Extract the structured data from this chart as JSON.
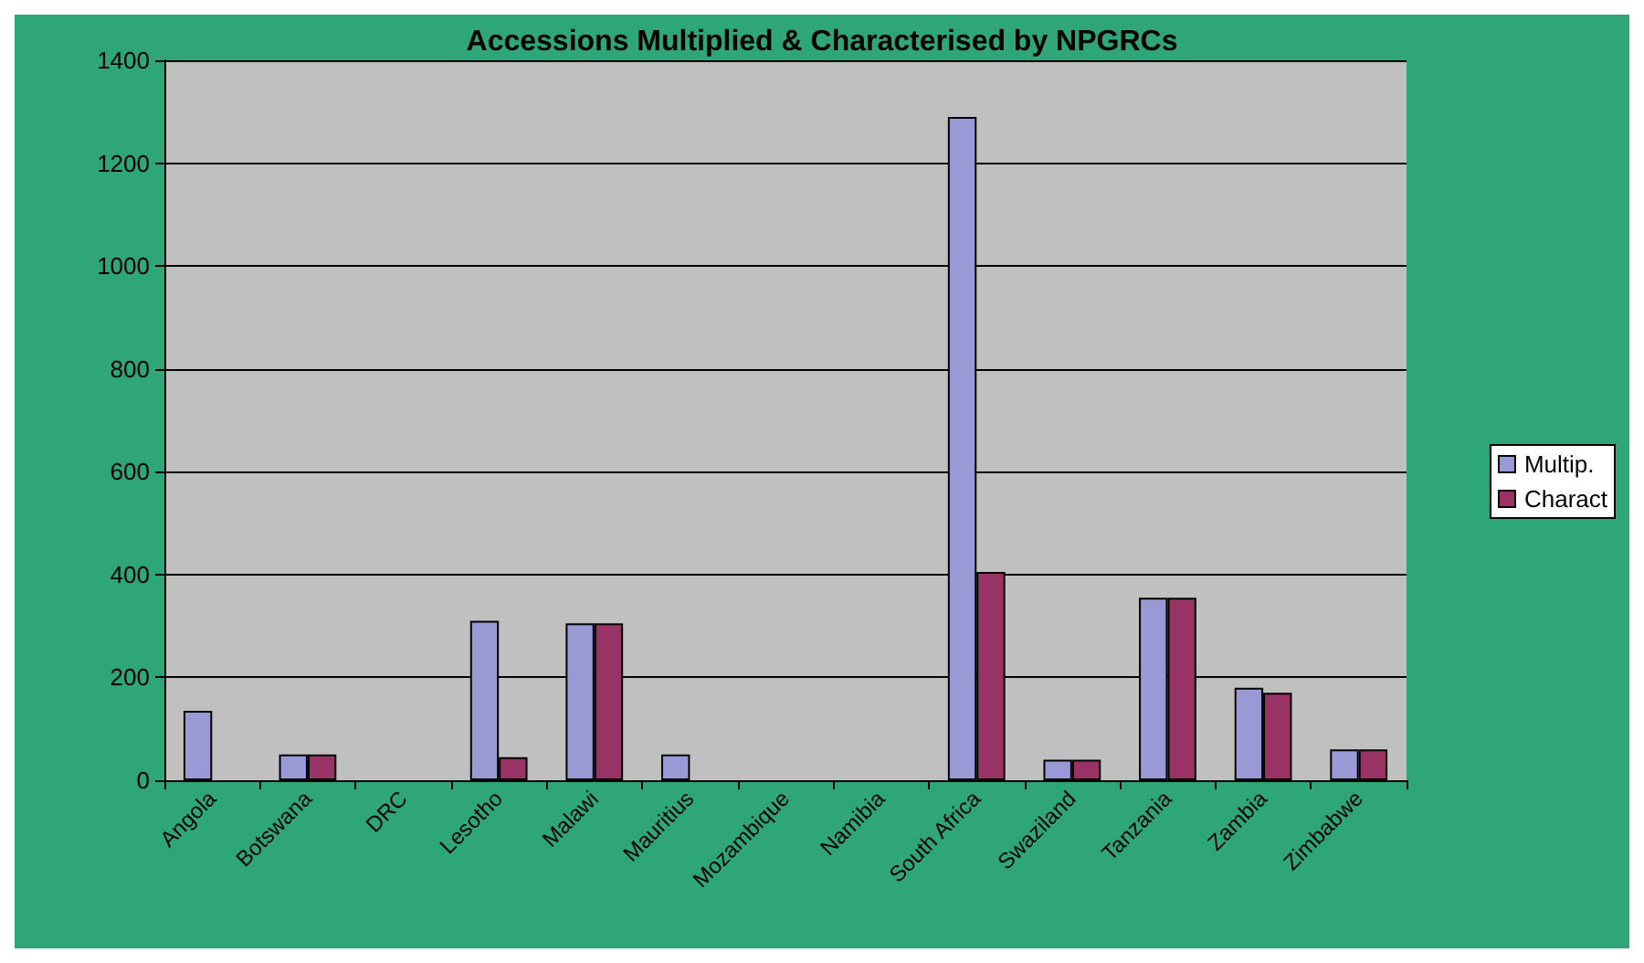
{
  "chart_data": {
    "type": "bar",
    "title": "Accessions Multiplied & Characterised by NPGRCs",
    "categories": [
      "Angola",
      "Botswana",
      "DRC",
      "Lesotho",
      "Malawi",
      "Mauritius",
      "Mozambique",
      "Namibia",
      "South Africa",
      "Swaziland",
      "Tanzania",
      "Zambia",
      "Zimbabwe"
    ],
    "series": [
      {
        "name": "Multip.",
        "color": "#9999d6",
        "values": [
          135,
          50,
          null,
          310,
          305,
          50,
          null,
          null,
          1290,
          40,
          355,
          180,
          60
        ]
      },
      {
        "name": "Charact",
        "color": "#993366",
        "values": [
          null,
          50,
          null,
          45,
          305,
          null,
          null,
          null,
          405,
          40,
          355,
          170,
          60
        ]
      }
    ],
    "ylim": [
      0,
      1400
    ],
    "yticks": [
      0,
      200,
      400,
      600,
      800,
      1000,
      1200,
      1400
    ],
    "grid": "y",
    "legend": "right"
  }
}
